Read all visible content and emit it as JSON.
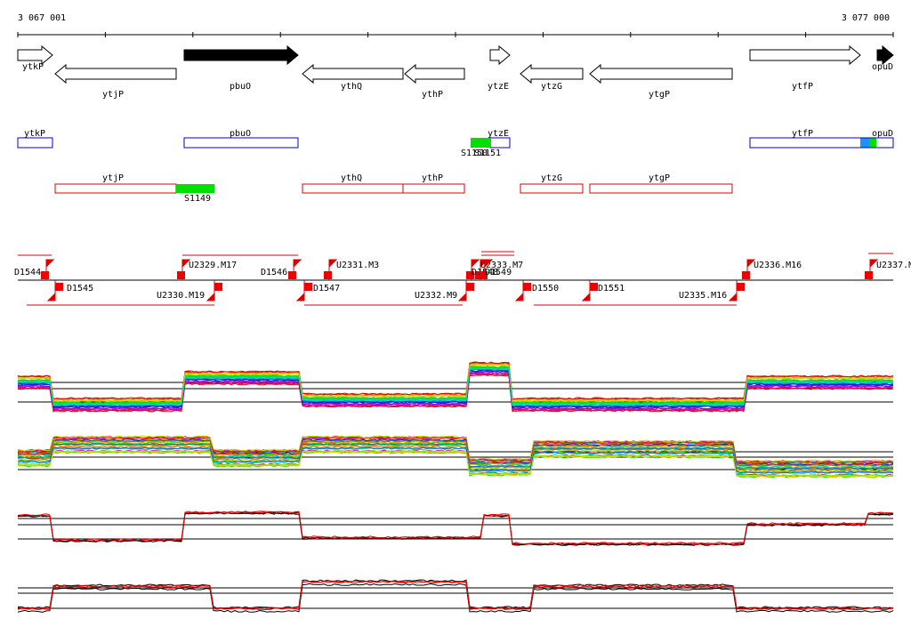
{
  "ruler": {
    "start": "3 067 001",
    "end": "3 077 000"
  },
  "genes": [
    {
      "label": "ytkP"
    },
    {
      "label": "ytjP"
    },
    {
      "label": "pbuO"
    },
    {
      "label": "ythQ"
    },
    {
      "label": "ythP"
    },
    {
      "label": "ytzE"
    },
    {
      "label": "ytzG"
    },
    {
      "label": "ytgP"
    },
    {
      "label": "ytfP"
    },
    {
      "label": "opuD"
    }
  ],
  "forward_features": [
    {
      "label": "ytkP"
    },
    {
      "label": "pbuO"
    },
    {
      "label": "ytzE"
    },
    {
      "label": "ytfP"
    },
    {
      "label": "opuD"
    },
    {
      "label": "S1150"
    },
    {
      "label": "S1151"
    }
  ],
  "reverse_features": [
    {
      "label": "ytjP"
    },
    {
      "label": "ythQ"
    },
    {
      "label": "ythP"
    },
    {
      "label": "ytzG"
    },
    {
      "label": "ytgP"
    },
    {
      "label": "S1149"
    }
  ],
  "markers": [
    {
      "label": "D1544"
    },
    {
      "label": "D1545"
    },
    {
      "label": "U2329.M17"
    },
    {
      "label": "U2330.M19"
    },
    {
      "label": "D1546"
    },
    {
      "label": "U2331.M3"
    },
    {
      "label": "D1547"
    },
    {
      "label": "U2332.M9"
    },
    {
      "label": "U2333.M7"
    },
    {
      "label": "D1548"
    },
    {
      "label": "D1549"
    },
    {
      "label": "D1550"
    },
    {
      "label": "D1551"
    },
    {
      "label": "U2335.M16"
    },
    {
      "label": "U2336.M16"
    },
    {
      "label": "U2337.M"
    }
  ]
}
